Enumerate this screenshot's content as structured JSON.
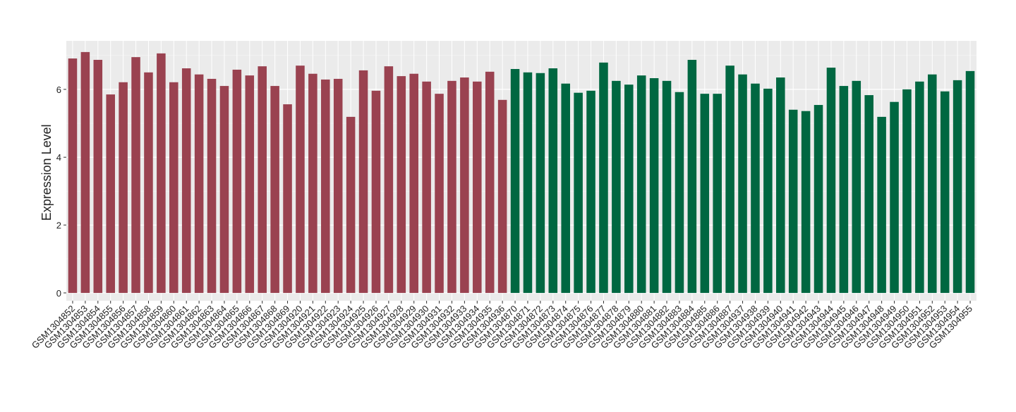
{
  "chart_data": {
    "type": "bar",
    "y_label": "Expression Level",
    "categories": [
      "GSM1304852",
      "GSM1304853",
      "GSM1304854",
      "GSM1304855",
      "GSM1304856",
      "GSM1304857",
      "GSM1304858",
      "GSM1304859",
      "GSM1304860",
      "GSM1304861",
      "GSM1304862",
      "GSM1304863",
      "GSM1304864",
      "GSM1304865",
      "GSM1304866",
      "GSM1304867",
      "GSM1304868",
      "GSM1304869",
      "GSM1304920",
      "GSM1304921",
      "GSM1304922",
      "GSM1304923",
      "GSM1304924",
      "GSM1304925",
      "GSM1304926",
      "GSM1304927",
      "GSM1304928",
      "GSM1304929",
      "GSM1304930",
      "GSM1304931",
      "GSM1304932",
      "GSM1304933",
      "GSM1304934",
      "GSM1304935",
      "GSM1304936",
      "GSM1304870",
      "GSM1304871",
      "GSM1304872",
      "GSM1304873",
      "GSM1304874",
      "GSM1304875",
      "GSM1304876",
      "GSM1304877",
      "GSM1304878",
      "GSM1304879",
      "GSM1304880",
      "GSM1304881",
      "GSM1304882",
      "GSM1304883",
      "GSM1304884",
      "GSM1304885",
      "GSM1304886",
      "GSM1304887",
      "GSM1304937",
      "GSM1304938",
      "GSM1304939",
      "GSM1304940",
      "GSM1304941",
      "GSM1304942",
      "GSM1304943",
      "GSM1304944",
      "GSM1304945",
      "GSM1304946",
      "GSM1304947",
      "GSM1304948",
      "GSM1304949",
      "GSM1304950",
      "GSM1304951",
      "GSM1304952",
      "GSM1304953",
      "GSM1304954",
      "GSM1304955"
    ],
    "values": [
      6.91,
      7.1,
      6.87,
      5.85,
      6.21,
      6.95,
      6.5,
      7.06,
      6.21,
      6.62,
      6.44,
      6.31,
      6.1,
      6.58,
      6.41,
      6.68,
      6.1,
      5.56,
      6.7,
      6.46,
      6.29,
      6.31,
      5.19,
      6.56,
      5.96,
      6.68,
      6.39,
      6.46,
      6.23,
      5.87,
      6.25,
      6.35,
      6.23,
      6.52,
      5.69,
      6.6,
      6.5,
      6.48,
      6.62,
      6.17,
      5.9,
      5.96,
      6.79,
      6.25,
      6.14,
      6.41,
      6.33,
      6.25,
      5.92,
      6.87,
      5.87,
      5.87,
      6.7,
      6.44,
      6.17,
      6.02,
      6.35,
      5.4,
      5.36,
      5.54,
      6.64,
      6.1,
      6.25,
      5.83,
      5.19,
      5.63,
      6.0,
      6.23,
      6.44,
      5.94,
      6.27,
      6.54
    ],
    "colors": [
      "#9a4250",
      "#9a4250",
      "#9a4250",
      "#9a4250",
      "#9a4250",
      "#9a4250",
      "#9a4250",
      "#9a4250",
      "#9a4250",
      "#9a4250",
      "#9a4250",
      "#9a4250",
      "#9a4250",
      "#9a4250",
      "#9a4250",
      "#9a4250",
      "#9a4250",
      "#9a4250",
      "#9a4250",
      "#9a4250",
      "#9a4250",
      "#9a4250",
      "#9a4250",
      "#9a4250",
      "#9a4250",
      "#9a4250",
      "#9a4250",
      "#9a4250",
      "#9a4250",
      "#9a4250",
      "#9a4250",
      "#9a4250",
      "#9a4250",
      "#9a4250",
      "#9a4250",
      "#006741",
      "#006741",
      "#006741",
      "#006741",
      "#006741",
      "#006741",
      "#006741",
      "#006741",
      "#006741",
      "#006741",
      "#006741",
      "#006741",
      "#006741",
      "#006741",
      "#006741",
      "#006741",
      "#006741",
      "#006741",
      "#006741",
      "#006741",
      "#006741",
      "#006741",
      "#006741",
      "#006741",
      "#006741",
      "#006741",
      "#006741",
      "#006741",
      "#006741",
      "#006741",
      "#006741",
      "#006741",
      "#006741",
      "#006741",
      "#006741",
      "#006741",
      "#006741"
    ],
    "ylim": [
      -0.23,
      7.43
    ],
    "yticks": [
      0,
      2,
      4,
      6
    ],
    "grid": true
  }
}
